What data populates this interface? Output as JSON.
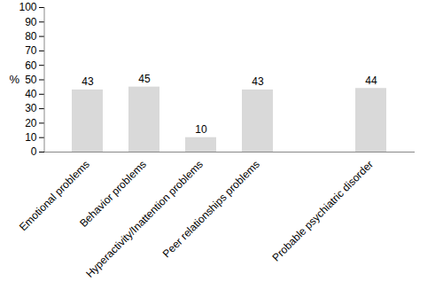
{
  "chart_data": {
    "type": "bar",
    "y_label": "%",
    "categories": [
      "Emotional problems",
      "Behavior problems",
      "Hyperactivity/Inattention problems",
      "Peer relationships problems",
      null,
      "Probable psychiatric disorder"
    ],
    "values": [
      43,
      45,
      10,
      43,
      null,
      44
    ],
    "color": "#d9d9d9",
    "ylim": [
      0,
      100
    ],
    "yticks": [
      0,
      10,
      20,
      30,
      40,
      50,
      60,
      70,
      80,
      90,
      100
    ],
    "grid": false,
    "data_labels": true
  }
}
